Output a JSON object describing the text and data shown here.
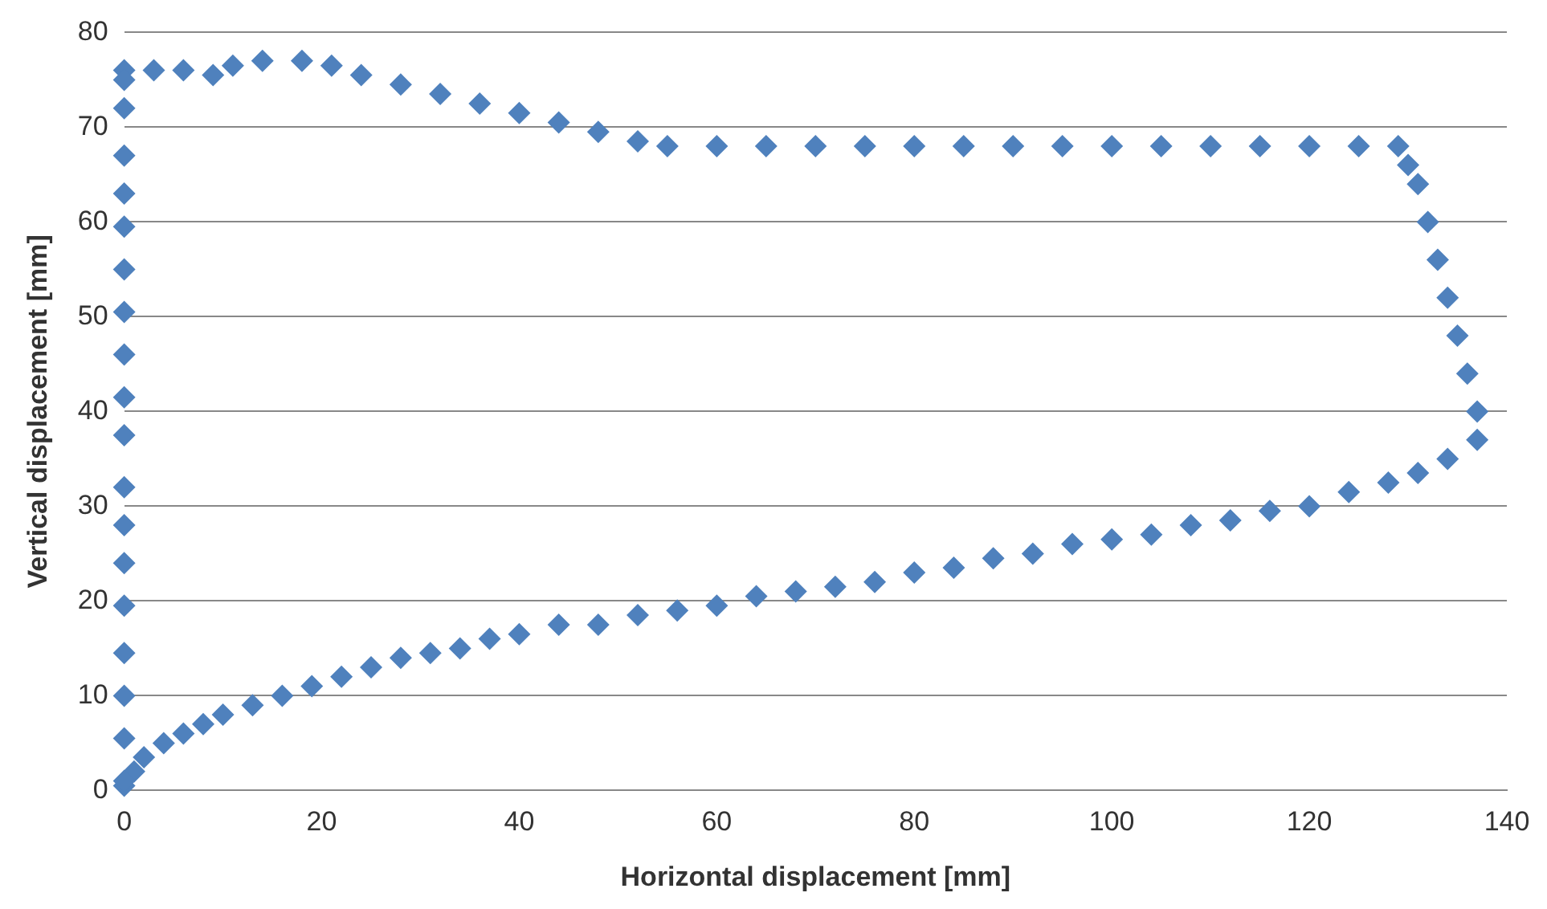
{
  "chart_data": {
    "type": "scatter",
    "xlabel": "Horizontal displacement [mm]",
    "ylabel": "Vertical displacement [mm]",
    "xlim": [
      0,
      140
    ],
    "xticks": [
      0,
      20,
      40,
      60,
      80,
      100,
      120,
      140
    ],
    "ylim": [
      0,
      80
    ],
    "yticks": [
      0,
      10,
      20,
      30,
      40,
      50,
      60,
      70,
      80
    ],
    "grid": "y",
    "legend": false,
    "marker": "diamond",
    "series": [
      {
        "color": "#4f81bd",
        "x": [
          0,
          1,
          2,
          4,
          6,
          8,
          10,
          13,
          16,
          19,
          22,
          25,
          28,
          31,
          34,
          37,
          40,
          44,
          48,
          52,
          56,
          60,
          64,
          68,
          72,
          76,
          80,
          84,
          88,
          92,
          96,
          100,
          104,
          108,
          112,
          116,
          120,
          124,
          128,
          131,
          134,
          137,
          137,
          136,
          135,
          134,
          133,
          132,
          131,
          130,
          129,
          125,
          120,
          115,
          110,
          105,
          100,
          95,
          90,
          85,
          80,
          75,
          70,
          65,
          60,
          55,
          52,
          48,
          44,
          40,
          36,
          32,
          28,
          24,
          21,
          18,
          14,
          11,
          9,
          6,
          3,
          0,
          0,
          0,
          0,
          0,
          0,
          0,
          0,
          0,
          0,
          0,
          0,
          0,
          0,
          0,
          0,
          0,
          0,
          0
        ],
        "values": [
          0.5,
          2,
          3.5,
          5,
          6,
          7,
          8,
          9,
          10,
          11,
          12,
          13,
          14,
          14.5,
          15,
          16,
          16.5,
          17.5,
          17.5,
          18.5,
          19,
          19.5,
          20.5,
          21,
          21.5,
          22,
          23,
          23.5,
          24.5,
          25,
          26,
          26.5,
          27,
          28,
          28.5,
          29.5,
          30,
          31.5,
          32.5,
          33.5,
          35,
          37,
          40,
          44,
          48,
          52,
          56,
          60,
          64,
          66,
          68,
          68,
          68,
          68,
          68,
          68,
          68,
          68,
          68,
          68,
          68,
          68,
          68,
          68,
          68,
          68,
          68.5,
          69.5,
          70.5,
          71.5,
          72.5,
          73.5,
          74.5,
          75.5,
          76.5,
          77,
          77,
          76.5,
          75.5,
          76,
          76,
          76,
          75,
          72,
          67,
          63,
          59.5,
          55,
          50.5,
          46,
          41.5,
          37.5,
          32,
          28,
          24,
          19.5,
          14.5,
          10,
          5.5,
          1
        ]
      }
    ]
  }
}
